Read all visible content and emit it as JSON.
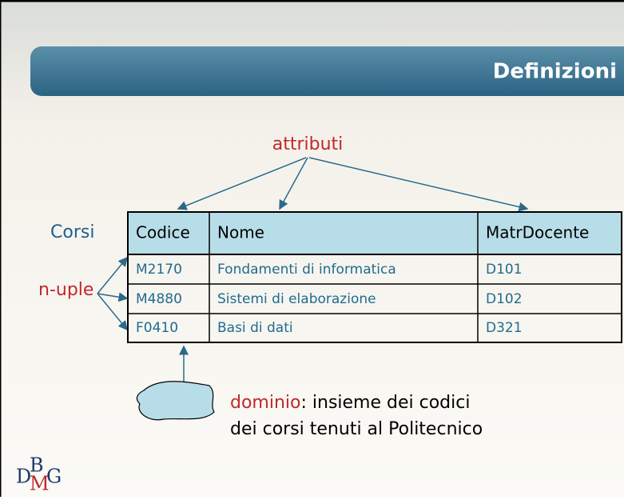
{
  "header": {
    "title": "Definizioni"
  },
  "labels": {
    "attributes": "attributi",
    "relation": "Corsi",
    "tuples": "n-uple",
    "domain_word": "dominio",
    "domain_rest": ": insieme dei codici",
    "domain_line2": "dei corsi tenuti al Politecnico"
  },
  "table": {
    "header": [
      "Codice",
      "Nome",
      "MatrDocente"
    ],
    "rows": [
      [
        "M2170",
        "Fondamenti di informatica",
        "D101"
      ],
      [
        "M4880",
        "Sistemi di elaborazione",
        "D102"
      ],
      [
        "F0410",
        "Basi di dati",
        "D321"
      ]
    ]
  },
  "logo": {
    "d": "D",
    "b": "B",
    "m": "M",
    "g": "G"
  }
}
